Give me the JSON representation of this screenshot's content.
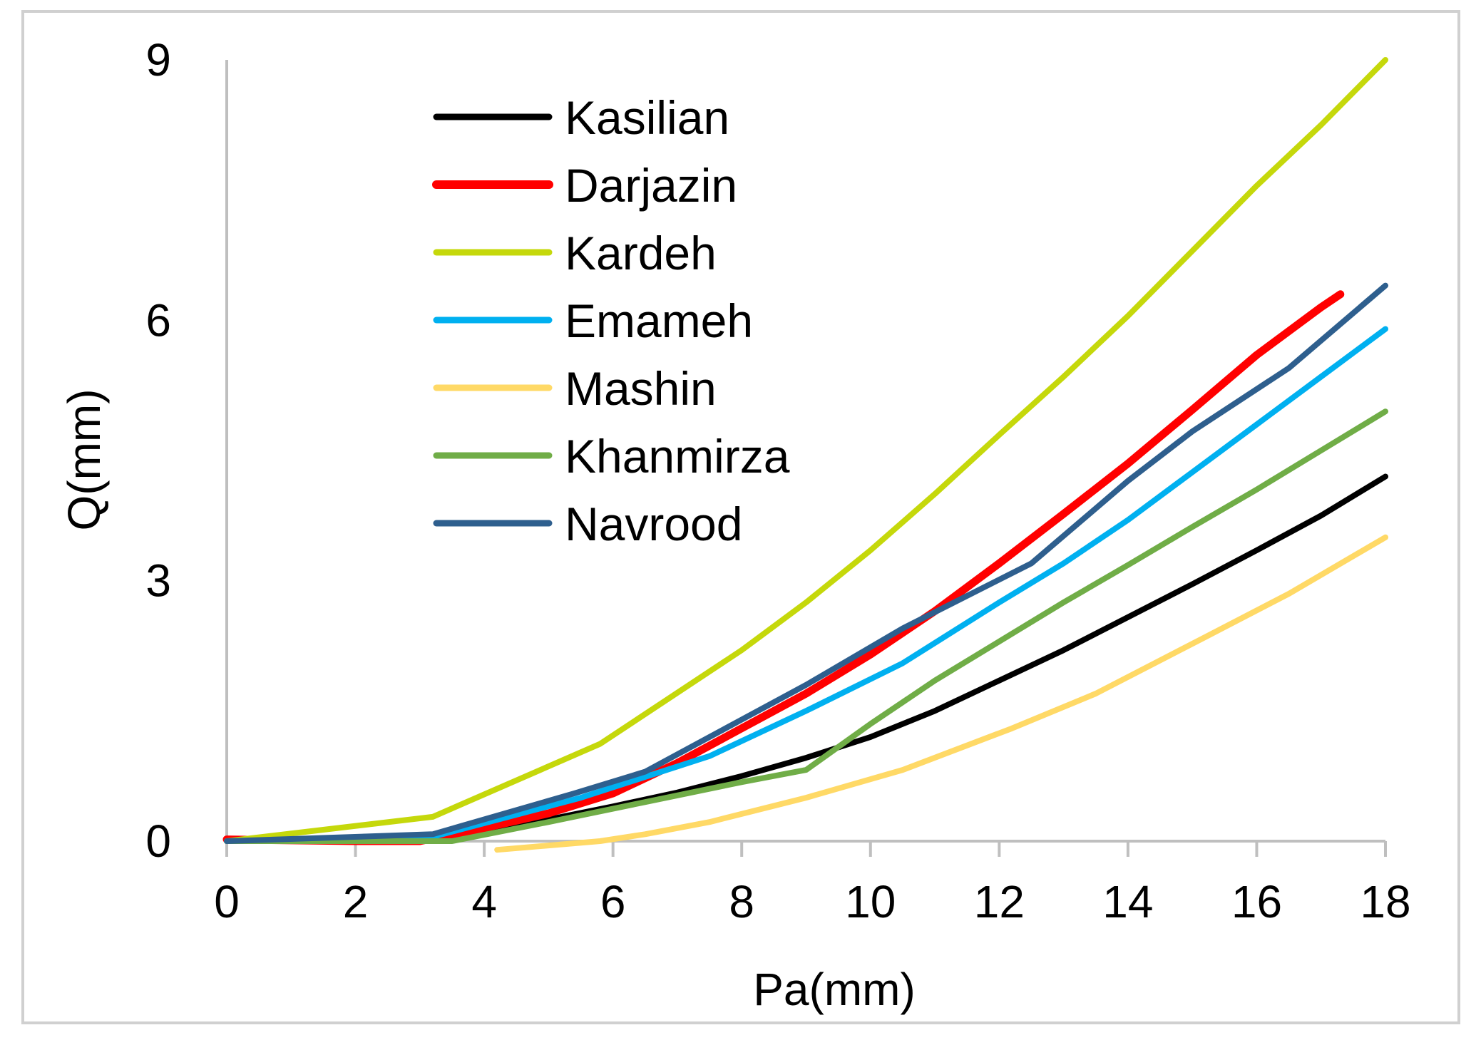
{
  "chart_data": {
    "type": "line",
    "title": "",
    "xlabel": "Pa(mm)",
    "ylabel": "Q(mm)",
    "xlim": [
      0,
      18
    ],
    "ylim": [
      0,
      9
    ],
    "xticks": [
      "0",
      "2",
      "4",
      "6",
      "8",
      "10",
      "12",
      "14",
      "16",
      "18"
    ],
    "yticks": [
      "0",
      "3",
      "6",
      "9"
    ],
    "grid": false,
    "legend_position": "top-left",
    "series": [
      {
        "name": "Kasilian",
        "color": "#000000",
        "x": [
          0,
          2,
          3,
          4,
          5,
          6,
          7,
          8,
          9,
          10,
          11,
          12,
          13,
          14,
          15,
          16,
          17,
          18
        ],
        "y": [
          0,
          0,
          0.02,
          0.12,
          0.25,
          0.4,
          0.56,
          0.75,
          0.96,
          1.2,
          1.5,
          1.85,
          2.2,
          2.58,
          2.96,
          3.35,
          3.75,
          4.2
        ]
      },
      {
        "name": "Darjazin",
        "color": "#ff0000",
        "x": [
          0,
          2,
          3,
          4,
          5,
          6,
          7,
          8,
          9,
          10,
          11,
          12,
          13,
          14,
          15,
          16,
          17,
          17.3
        ],
        "y": [
          0.02,
          0,
          0,
          0.15,
          0.32,
          0.55,
          0.9,
          1.3,
          1.7,
          2.15,
          2.65,
          3.2,
          3.77,
          4.35,
          4.97,
          5.6,
          6.15,
          6.3
        ]
      },
      {
        "name": "Kardeh",
        "color": "#c5d80b",
        "x": [
          0,
          3.2,
          5.8,
          8,
          9,
          10,
          11,
          12,
          13,
          14,
          15,
          16,
          17,
          18
        ],
        "y": [
          0,
          0.28,
          1.12,
          2.2,
          2.75,
          3.35,
          4.0,
          4.68,
          5.35,
          6.05,
          6.8,
          7.55,
          8.25,
          9.0
        ]
      },
      {
        "name": "Emameh",
        "color": "#00b0f0",
        "x": [
          0,
          3.2,
          5.5,
          7.5,
          9,
          10.5,
          12,
          13,
          14,
          15,
          16,
          17,
          18
        ],
        "y": [
          0,
          0.05,
          0.5,
          0.98,
          1.5,
          2.05,
          2.75,
          3.2,
          3.7,
          4.25,
          4.8,
          5.35,
          5.9
        ]
      },
      {
        "name": "Mashin",
        "color": "#ffd966",
        "x": [
          4.2,
          5.8,
          6.5,
          7.5,
          9,
          10.5,
          12.2,
          13.5,
          15.2,
          16.5,
          18
        ],
        "y": [
          -0.1,
          0,
          0.08,
          0.22,
          0.5,
          0.82,
          1.3,
          1.7,
          2.35,
          2.85,
          3.5
        ]
      },
      {
        "name": "Khanmirza",
        "color": "#70ad47",
        "x": [
          0,
          3.5,
          5,
          6.5,
          8,
          9,
          10,
          11,
          12,
          13,
          14,
          15,
          16,
          17,
          18
        ],
        "y": [
          0,
          0,
          0.22,
          0.45,
          0.68,
          0.82,
          1.35,
          1.85,
          2.3,
          2.75,
          3.18,
          3.62,
          4.05,
          4.5,
          4.95
        ]
      },
      {
        "name": "Navrood",
        "color": "#2e5f8e",
        "x": [
          0,
          3.2,
          5.4,
          6.5,
          8,
          9,
          10.5,
          12.5,
          14,
          15,
          16.5,
          18
        ],
        "y": [
          0,
          0.08,
          0.55,
          0.8,
          1.4,
          1.8,
          2.45,
          3.2,
          4.15,
          4.72,
          5.45,
          6.4
        ]
      }
    ]
  }
}
